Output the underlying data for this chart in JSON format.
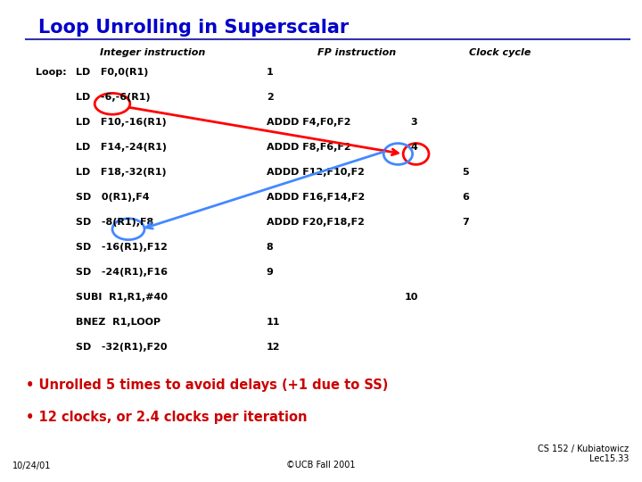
{
  "title": "Loop Unrolling in Superscalar",
  "title_color": "#0000CC",
  "bg_color": "#FFFFFF",
  "header_col1": "Integer instruction",
  "header_col2": "FP instruction",
  "header_col3": "Clock cycle",
  "loop_label": "Loop:",
  "rows": [
    {
      "int": "LD   F0,0(R1)",
      "fp": "1",
      "clk": ""
    },
    {
      "int": "LD   -6,-6(R1)",
      "fp": "2",
      "clk": ""
    },
    {
      "int": "LD   F10,-16(R1) ADDD F4,F0,F2",
      "fp": "3",
      "clk": ""
    },
    {
      "int": "LD   F14,-24(R1) ADDD F8,F6,F2",
      "fp": "4",
      "clk": ""
    },
    {
      "int": "LD   F18,-32(R1) ADDD F12,F10,F2",
      "fp": "",
      "clk": "5"
    },
    {
      "int": "SD   0(R1),F4    ADDD F16,F14,F2",
      "fp": "",
      "clk": "6"
    },
    {
      "int": "SD   -8(R1),F8   ADDD F20,F18,F2",
      "fp": "",
      "clk": "7"
    },
    {
      "int": "SD   -16(R1),F12",
      "fp": "8",
      "clk": ""
    },
    {
      "int": "SD   -24(R1),F16",
      "fp": "9",
      "clk": ""
    },
    {
      "int": "SUBI  R1,R1,#40",
      "fp": "",
      "clk": "10"
    },
    {
      "int": "BNEZ  R1,LOOP",
      "fp": "11",
      "clk": ""
    },
    {
      "int": "SD   -32(R1),F20",
      "fp": "12",
      "clk": ""
    }
  ],
  "bullet1": "Unrolled 5 times to avoid delays (+1 due to SS)",
  "bullet2": "12 clocks, or 2.4 clocks per iteration",
  "bullet_color": "#CC0000",
  "footer_left": "10/24/01",
  "footer_center": "©UCB Fall 2001",
  "footer_right": "CS 152 / Kubiatowicz\nLec15.33",
  "footer_color": "#000000"
}
